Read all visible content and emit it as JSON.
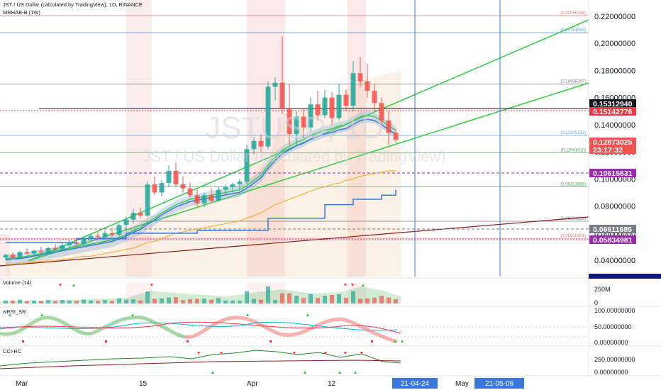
{
  "header": {
    "title": "JST / US Dollar (calculated by TradingView), 1D, BINANCE",
    "indicator": "MRHAB-B (1W)"
  },
  "watermark": {
    "symbol": "JSTUSD, 1D",
    "name": "JST / US Dollar (calculated by TradingView)"
  },
  "colors": {
    "up": "#26a69a",
    "down": "#ef5350",
    "green_line": "#2ecc40",
    "orange_line": "#f5a623",
    "blue_line": "#3a78d8",
    "brown_line": "#8b1a1a",
    "fib_blue": "#5aa0e8",
    "fib_red": "#e57373",
    "fib_green": "#4caf50"
  },
  "price_axis": {
    "ticks": [
      "0.22000000",
      "0.20000000",
      "0.18000000",
      "0.16000000",
      "0.14000000",
      "0.12000000",
      "0.10000000",
      "0.08000000",
      "0.06000000",
      "0.04000000"
    ],
    "badges": [
      {
        "value": "0.15312940",
        "color": "#131722"
      },
      {
        "value": "0.15142776",
        "color": "#f23645"
      },
      {
        "value": "0.12873025",
        "color": "#ef5350"
      },
      {
        "value": "23:17:32",
        "color": "#ef5350"
      },
      {
        "value": "0.10615631",
        "color": "#9c27b0"
      },
      {
        "value": "0.06611685",
        "color": "#787b86"
      },
      {
        "value": "0.05834981",
        "color": "#9c27b0"
      }
    ]
  },
  "fib_levels": [
    {
      "label": "(0.22055284)",
      "price": 0.2205,
      "color": "#e57373"
    },
    {
      "label": "(0.20791063)",
      "price": 0.2079,
      "color": "#5aa0e8"
    },
    {
      "label": "(0.16998397)",
      "price": 0.17,
      "color": "#787b86"
    },
    {
      "label": "(0.13205732)",
      "price": 0.1321,
      "color": "#5aa0e8"
    },
    {
      "label": "(0.11941510)",
      "price": 0.1194,
      "color": "#4caf50"
    },
    {
      "label": "(0.09413066)",
      "price": 0.0941,
      "color": "#4caf50"
    },
    {
      "label": "(0.06884622)",
      "price": 0.0688,
      "color": "#787b86"
    },
    {
      "label": "(0.05620401)",
      "price": 0.0562,
      "color": "#e57373"
    }
  ],
  "time_axis": {
    "labels": [
      "Mar",
      "15",
      "Apr",
      "12",
      "May"
    ],
    "highlights": [
      "21-04-24",
      "21-05-06"
    ]
  },
  "panes": [
    {
      "name": "Volume (14)",
      "ticks": [
        "250M",
        "0"
      ]
    },
    {
      "name": "wRSI_SR",
      "ticks": [
        "100.00000000",
        "50.00000000",
        "0.00000000"
      ]
    },
    {
      "name": "CCI-RC",
      "ticks": [
        "250.00000000",
        "0.00000000"
      ]
    }
  ],
  "chart_data": {
    "type": "candlestick",
    "title": "JST / US Dollar (calculated by TradingView), 1D, BINANCE",
    "ylim": [
      0.028,
      0.232
    ],
    "candles": [
      {
        "o": 0.042,
        "h": 0.045,
        "l": 0.04,
        "c": 0.044
      },
      {
        "o": 0.044,
        "h": 0.046,
        "l": 0.041,
        "c": 0.042
      },
      {
        "o": 0.042,
        "h": 0.047,
        "l": 0.041,
        "c": 0.046
      },
      {
        "o": 0.046,
        "h": 0.049,
        "l": 0.044,
        "c": 0.045
      },
      {
        "o": 0.045,
        "h": 0.048,
        "l": 0.043,
        "c": 0.047
      },
      {
        "o": 0.047,
        "h": 0.05,
        "l": 0.045,
        "c": 0.046
      },
      {
        "o": 0.046,
        "h": 0.05,
        "l": 0.045,
        "c": 0.049
      },
      {
        "o": 0.049,
        "h": 0.052,
        "l": 0.047,
        "c": 0.048
      },
      {
        "o": 0.048,
        "h": 0.053,
        "l": 0.047,
        "c": 0.051
      },
      {
        "o": 0.051,
        "h": 0.055,
        "l": 0.049,
        "c": 0.053
      },
      {
        "o": 0.053,
        "h": 0.056,
        "l": 0.05,
        "c": 0.052
      },
      {
        "o": 0.052,
        "h": 0.057,
        "l": 0.05,
        "c": 0.056
      },
      {
        "o": 0.056,
        "h": 0.06,
        "l": 0.054,
        "c": 0.058
      },
      {
        "o": 0.058,
        "h": 0.061,
        "l": 0.055,
        "c": 0.057
      },
      {
        "o": 0.057,
        "h": 0.062,
        "l": 0.055,
        "c": 0.06
      },
      {
        "o": 0.06,
        "h": 0.064,
        "l": 0.057,
        "c": 0.059
      },
      {
        "o": 0.059,
        "h": 0.067,
        "l": 0.057,
        "c": 0.066
      },
      {
        "o": 0.066,
        "h": 0.072,
        "l": 0.063,
        "c": 0.07
      },
      {
        "o": 0.07,
        "h": 0.078,
        "l": 0.067,
        "c": 0.075
      },
      {
        "o": 0.075,
        "h": 0.079,
        "l": 0.071,
        "c": 0.073
      },
      {
        "o": 0.073,
        "h": 0.098,
        "l": 0.072,
        "c": 0.096
      },
      {
        "o": 0.096,
        "h": 0.102,
        "l": 0.088,
        "c": 0.09
      },
      {
        "o": 0.09,
        "h": 0.099,
        "l": 0.087,
        "c": 0.097
      },
      {
        "o": 0.097,
        "h": 0.11,
        "l": 0.094,
        "c": 0.106
      },
      {
        "o": 0.106,
        "h": 0.112,
        "l": 0.094,
        "c": 0.096
      },
      {
        "o": 0.096,
        "h": 0.102,
        "l": 0.09,
        "c": 0.093
      },
      {
        "o": 0.093,
        "h": 0.097,
        "l": 0.086,
        "c": 0.088
      },
      {
        "o": 0.088,
        "h": 0.093,
        "l": 0.08,
        "c": 0.082
      },
      {
        "o": 0.082,
        "h": 0.09,
        "l": 0.079,
        "c": 0.088
      },
      {
        "o": 0.088,
        "h": 0.093,
        "l": 0.082,
        "c": 0.084
      },
      {
        "o": 0.084,
        "h": 0.094,
        "l": 0.083,
        "c": 0.092
      },
      {
        "o": 0.092,
        "h": 0.096,
        "l": 0.088,
        "c": 0.094
      },
      {
        "o": 0.094,
        "h": 0.097,
        "l": 0.09,
        "c": 0.096
      },
      {
        "o": 0.096,
        "h": 0.1,
        "l": 0.092,
        "c": 0.098
      },
      {
        "o": 0.098,
        "h": 0.125,
        "l": 0.096,
        "c": 0.122
      },
      {
        "o": 0.122,
        "h": 0.131,
        "l": 0.118,
        "c": 0.128
      },
      {
        "o": 0.128,
        "h": 0.133,
        "l": 0.12,
        "c": 0.124
      },
      {
        "o": 0.124,
        "h": 0.172,
        "l": 0.122,
        "c": 0.168
      },
      {
        "o": 0.168,
        "h": 0.175,
        "l": 0.158,
        "c": 0.171
      },
      {
        "o": 0.171,
        "h": 0.205,
        "l": 0.148,
        "c": 0.152
      },
      {
        "o": 0.152,
        "h": 0.17,
        "l": 0.125,
        "c": 0.133
      },
      {
        "o": 0.133,
        "h": 0.15,
        "l": 0.124,
        "c": 0.146
      },
      {
        "o": 0.146,
        "h": 0.152,
        "l": 0.13,
        "c": 0.138
      },
      {
        "o": 0.138,
        "h": 0.16,
        "l": 0.135,
        "c": 0.155
      },
      {
        "o": 0.155,
        "h": 0.165,
        "l": 0.143,
        "c": 0.147
      },
      {
        "o": 0.147,
        "h": 0.166,
        "l": 0.145,
        "c": 0.16
      },
      {
        "o": 0.16,
        "h": 0.164,
        "l": 0.14,
        "c": 0.145
      },
      {
        "o": 0.145,
        "h": 0.17,
        "l": 0.143,
        "c": 0.162
      },
      {
        "o": 0.162,
        "h": 0.166,
        "l": 0.15,
        "c": 0.154
      },
      {
        "o": 0.154,
        "h": 0.187,
        "l": 0.15,
        "c": 0.178
      },
      {
        "o": 0.178,
        "h": 0.19,
        "l": 0.168,
        "c": 0.172
      },
      {
        "o": 0.172,
        "h": 0.185,
        "l": 0.16,
        "c": 0.165
      },
      {
        "o": 0.165,
        "h": 0.17,
        "l": 0.15,
        "c": 0.156
      },
      {
        "o": 0.156,
        "h": 0.16,
        "l": 0.14,
        "c": 0.143
      },
      {
        "o": 0.143,
        "h": 0.15,
        "l": 0.125,
        "c": 0.134
      },
      {
        "o": 0.134,
        "h": 0.137,
        "l": 0.127,
        "c": 0.129
      }
    ],
    "ma_green": [
      0.041,
      0.042,
      0.042,
      0.043,
      0.044,
      0.045,
      0.046,
      0.047,
      0.048,
      0.049,
      0.05,
      0.051,
      0.052,
      0.053,
      0.054,
      0.055,
      0.057,
      0.059,
      0.062,
      0.064,
      0.068,
      0.071,
      0.075,
      0.078,
      0.081,
      0.083,
      0.085,
      0.086,
      0.087,
      0.088,
      0.089,
      0.09,
      0.091,
      0.092,
      0.095,
      0.099,
      0.103,
      0.11,
      0.116,
      0.121,
      0.124,
      0.127,
      0.129,
      0.132,
      0.134,
      0.136,
      0.137,
      0.139,
      0.14,
      0.143,
      0.146,
      0.147,
      0.146,
      0.143,
      0.139,
      0.136
    ],
    "ma_orange": [
      0.037,
      0.037,
      0.038,
      0.038,
      0.039,
      0.039,
      0.04,
      0.04,
      0.041,
      0.041,
      0.042,
      0.043,
      0.043,
      0.044,
      0.045,
      0.046,
      0.047,
      0.048,
      0.049,
      0.051,
      0.053,
      0.054,
      0.056,
      0.058,
      0.06,
      0.061,
      0.062,
      0.063,
      0.064,
      0.065,
      0.066,
      0.067,
      0.068,
      0.069,
      0.071,
      0.073,
      0.075,
      0.078,
      0.081,
      0.083,
      0.085,
      0.087,
      0.089,
      0.091,
      0.093,
      0.094,
      0.096,
      0.097,
      0.099,
      0.1,
      0.102,
      0.103,
      0.104,
      0.105,
      0.106,
      0.106
    ],
    "ma_blue_steps": [
      0.053,
      0.053,
      0.053,
      0.053,
      0.053,
      0.053,
      0.053,
      0.053,
      0.053,
      0.053,
      0.056,
      0.056,
      0.056,
      0.056,
      0.056,
      0.056,
      0.056,
      0.06,
      0.06,
      0.06,
      0.06,
      0.06,
      0.06,
      0.06,
      0.06,
      0.06,
      0.06,
      0.062,
      0.062,
      0.062,
      0.062,
      0.062,
      0.062,
      0.062,
      0.062,
      0.062,
      0.062,
      0.071,
      0.071,
      0.071,
      0.071,
      0.071,
      0.071,
      0.071,
      0.071,
      0.081,
      0.081,
      0.081,
      0.081,
      0.085,
      0.085,
      0.085,
      0.085,
      0.088,
      0.088,
      0.092
    ]
  }
}
